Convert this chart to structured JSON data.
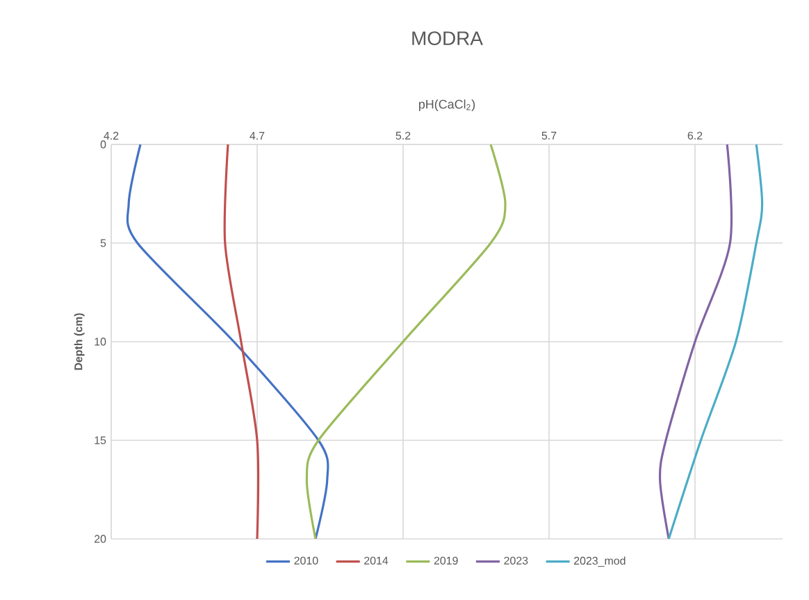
{
  "chart_data": {
    "type": "line",
    "title": "MODRA",
    "xlabel": "pH(CaCl$_{2}$)",
    "ylabel": "Depth (cm)",
    "xlim": [
      4.2,
      6.5
    ],
    "xticks": [
      4.2,
      4.7,
      5.2,
      5.7,
      6.2
    ],
    "ylim": [
      20,
      0
    ],
    "yticks": [
      0,
      5,
      10,
      15,
      20
    ],
    "grid": true,
    "legend": "bottom",
    "marker": "none",
    "line_style": "solid",
    "series": [
      {
        "name": "2010",
        "color": "#4472c4",
        "x": [
          4.3,
          4.26,
          4.29,
          4.62,
          4.91,
          4.94,
          4.9
        ],
        "values": [
          0,
          3,
          5,
          10,
          15,
          17,
          20
        ]
      },
      {
        "name": "2014",
        "color": "#c0504d",
        "x": [
          4.6,
          4.59,
          4.645,
          4.7,
          4.7
        ],
        "values": [
          0,
          5,
          10,
          15,
          20
        ]
      },
      {
        "name": "2019",
        "color": "#9bbb59",
        "x": [
          5.5,
          5.55,
          5.5,
          5.2,
          4.91,
          4.87,
          4.9
        ],
        "values": [
          0,
          3,
          5,
          10,
          15,
          17,
          20
        ]
      },
      {
        "name": "2023",
        "color": "#8064a2",
        "x": [
          6.31,
          6.32,
          6.2,
          6.1,
          6.08,
          6.11
        ],
        "values": [
          0,
          5,
          10,
          15,
          17,
          20
        ]
      },
      {
        "name": "2023_mod",
        "color": "#4bacc6",
        "x": [
          6.41,
          6.43,
          6.41,
          6.34,
          6.22,
          6.11
        ],
        "values": [
          0,
          3,
          5,
          10,
          15,
          20
        ]
      }
    ]
  }
}
